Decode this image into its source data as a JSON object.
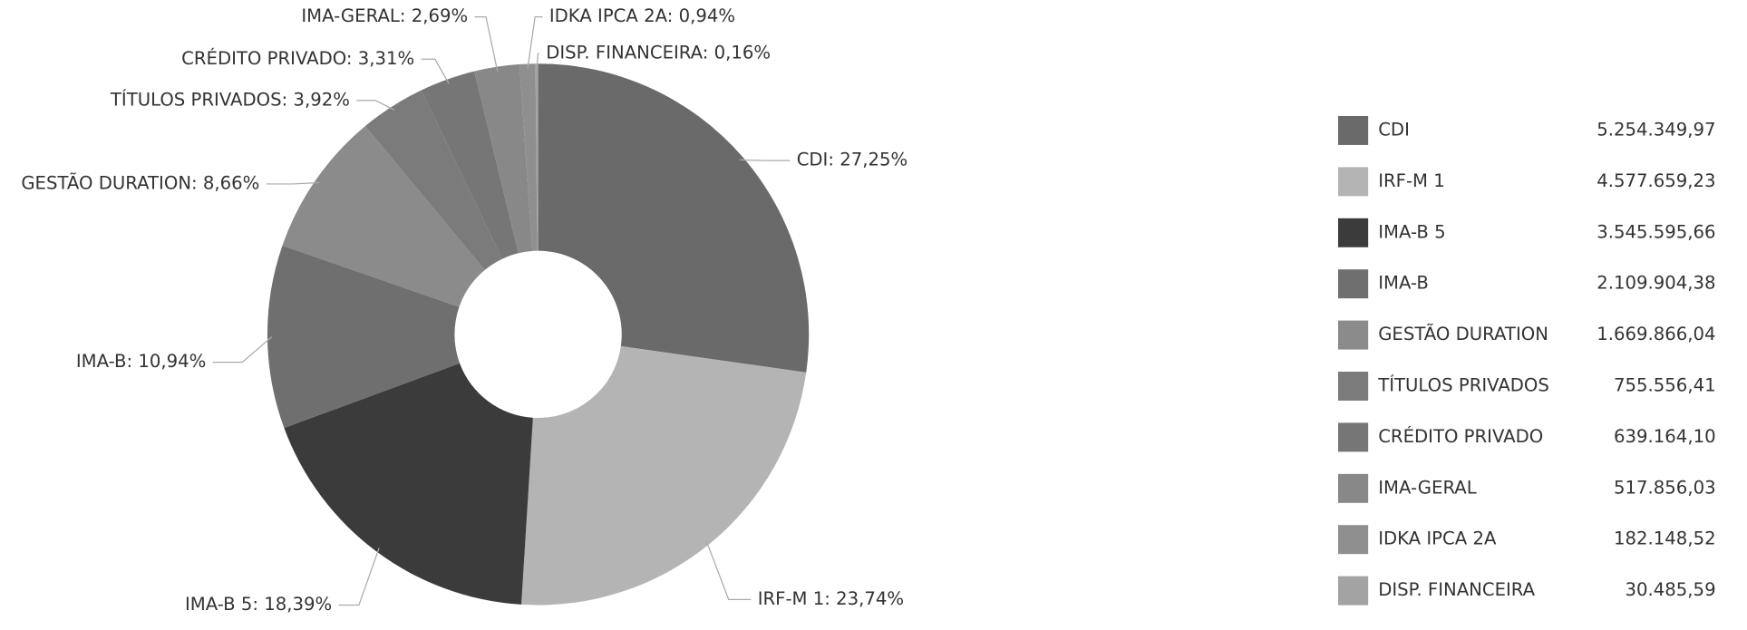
{
  "chart_data": {
    "type": "donut",
    "categories": [
      "CDI",
      "IRF-M 1",
      "IMA-B 5",
      "IMA-B",
      "GESTÃO DURATION",
      "TÍTULOS PRIVADOS",
      "CRÉDITO PRIVADO",
      "IMA-GERAL",
      "IDKA IPCA 2A",
      "DISP. FINANCEIRA"
    ],
    "values": [
      27.25,
      23.74,
      18.39,
      10.94,
      8.66,
      3.92,
      3.31,
      2.69,
      0.94,
      0.16
    ],
    "value_labels": [
      "CDI: 27,25%",
      "IRF-M 1: 23,74%",
      "IMA-B 5: 18,39%",
      "IMA-B: 10,94%",
      "GESTÃO DURATION: 8,66%",
      "TÍTULOS PRIVADOS: 3,92%",
      "CRÉDITO PRIVADO: 3,31%",
      "IMA-GERAL: 2,69%",
      "IDKA IPCA 2A: 0,94%",
      "DISP. FINANCEIRA: 0,16%"
    ],
    "colors": [
      "#6a6a6a",
      "#b4b4b4",
      "#3b3b3b",
      "#6f6f6f",
      "#8b8b8b",
      "#7b7b7b",
      "#767676",
      "#888888",
      "#8f8f8f",
      "#a3a3a3"
    ],
    "amounts": [
      5254349.97,
      4577659.23,
      3545595.66,
      2109904.38,
      1669866.04,
      755556.41,
      639164.1,
      517856.03,
      182148.52,
      30485.59
    ],
    "amount_labels": [
      "5.254.349,97",
      "4.577.659,23",
      "3.545.595,66",
      "2.109.904,38",
      "1.669.866,04",
      "755.556,41",
      "639.164,10",
      "517.856,03",
      "182.148,52",
      "30.485,59"
    ]
  }
}
